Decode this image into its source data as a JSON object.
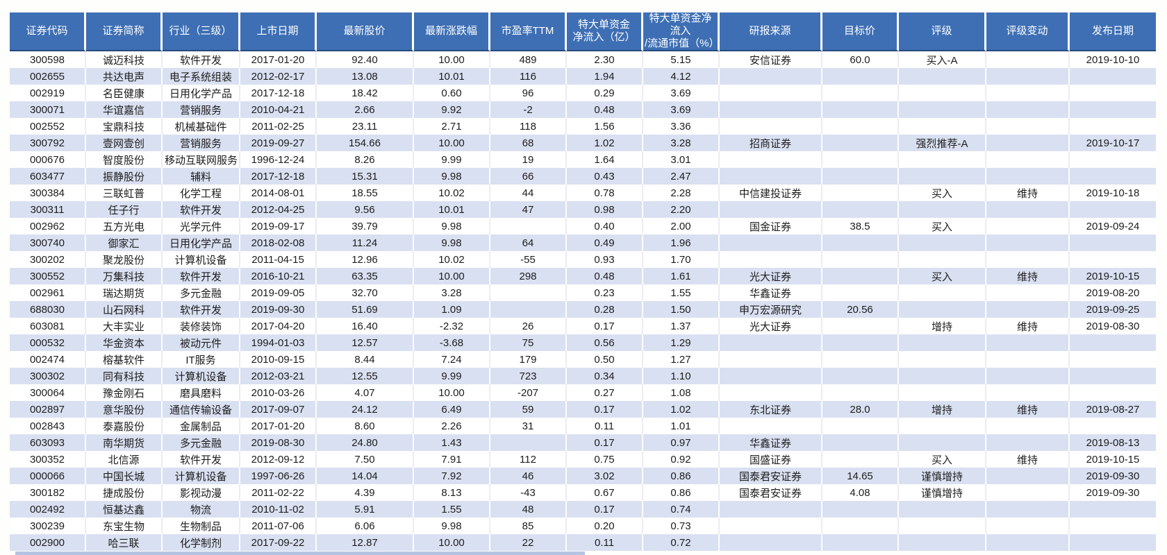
{
  "colors": {
    "header_bg": "#3e6fb4",
    "header_divider": "#26497d",
    "band_bg": "#d9e0f1",
    "partial_bar": "#adbee0"
  },
  "table": {
    "columns": [
      "证券代码",
      "证券简称",
      "行业（三级）",
      "上市日期",
      "最新股价",
      "最新涨跌幅",
      "市盈率TTM",
      "特大单资金\n净流入（亿）",
      "特大单资金净流入\n/流通市值（%）",
      "研报来源",
      "目标价",
      "评级",
      "评级变动",
      "发布日期"
    ],
    "rows": [
      [
        "300598",
        "诚迈科技",
        "软件开发",
        "2017-01-20",
        "92.40",
        "10.00",
        "489",
        "2.30",
        "5.15",
        "安信证券",
        "60.0",
        "买入-A",
        "",
        "2019-10-10"
      ],
      [
        "002655",
        "共达电声",
        "电子系统组装",
        "2012-02-17",
        "13.08",
        "10.01",
        "116",
        "1.94",
        "4.12",
        "",
        "",
        "",
        "",
        ""
      ],
      [
        "002919",
        "名臣健康",
        "日用化学产品",
        "2017-12-18",
        "18.42",
        "0.60",
        "96",
        "0.29",
        "3.69",
        "",
        "",
        "",
        "",
        ""
      ],
      [
        "300071",
        "华谊嘉信",
        "营销服务",
        "2010-04-21",
        "2.66",
        "9.92",
        "-2",
        "0.48",
        "3.69",
        "",
        "",
        "",
        "",
        ""
      ],
      [
        "002552",
        "宝鼎科技",
        "机械基础件",
        "2011-02-25",
        "23.11",
        "2.71",
        "118",
        "1.56",
        "3.36",
        "",
        "",
        "",
        "",
        ""
      ],
      [
        "300792",
        "壹网壹创",
        "营销服务",
        "2019-09-27",
        "154.66",
        "10.00",
        "68",
        "1.02",
        "3.28",
        "招商证券",
        "",
        "强烈推荐-A",
        "",
        "2019-10-17"
      ],
      [
        "000676",
        "智度股份",
        "移动互联网服务",
        "1996-12-24",
        "8.26",
        "9.99",
        "19",
        "1.64",
        "3.01",
        "",
        "",
        "",
        "",
        ""
      ],
      [
        "603477",
        "振静股份",
        "辅料",
        "2017-12-18",
        "15.31",
        "9.98",
        "66",
        "0.43",
        "2.47",
        "",
        "",
        "",
        "",
        ""
      ],
      [
        "300384",
        "三联虹普",
        "化学工程",
        "2014-08-01",
        "18.55",
        "10.02",
        "44",
        "0.78",
        "2.28",
        "中信建投证券",
        "",
        "买入",
        "维持",
        "2019-10-18"
      ],
      [
        "300311",
        "任子行",
        "软件开发",
        "2012-04-25",
        "9.56",
        "10.01",
        "47",
        "0.98",
        "2.20",
        "",
        "",
        "",
        "",
        ""
      ],
      [
        "002962",
        "五方光电",
        "光学元件",
        "2019-09-17",
        "39.79",
        "9.98",
        "",
        "0.40",
        "2.00",
        "国金证券",
        "38.5",
        "买入",
        "",
        "2019-09-24"
      ],
      [
        "300740",
        "御家汇",
        "日用化学产品",
        "2018-02-08",
        "11.24",
        "9.98",
        "64",
        "0.49",
        "1.96",
        "",
        "",
        "",
        "",
        ""
      ],
      [
        "300202",
        "聚龙股份",
        "计算机设备",
        "2011-04-15",
        "12.96",
        "10.02",
        "-55",
        "0.93",
        "1.70",
        "",
        "",
        "",
        "",
        ""
      ],
      [
        "300552",
        "万集科技",
        "软件开发",
        "2016-10-21",
        "63.35",
        "10.00",
        "298",
        "0.48",
        "1.61",
        "光大证券",
        "",
        "买入",
        "维持",
        "2019-10-15"
      ],
      [
        "002961",
        "瑞达期货",
        "多元金融",
        "2019-09-05",
        "32.70",
        "3.28",
        "",
        "0.23",
        "1.55",
        "华鑫证券",
        "",
        "",
        "",
        "2019-08-20"
      ],
      [
        "688030",
        "山石网科",
        "软件开发",
        "2019-09-30",
        "51.69",
        "1.09",
        "",
        "0.28",
        "1.50",
        "申万宏源研究",
        "20.56",
        "",
        "",
        "2019-09-25"
      ],
      [
        "603081",
        "大丰实业",
        "装修装饰",
        "2017-04-20",
        "16.40",
        "-2.32",
        "26",
        "0.17",
        "1.37",
        "光大证券",
        "",
        "增持",
        "维持",
        "2019-08-30"
      ],
      [
        "000532",
        "华金资本",
        "被动元件",
        "1994-01-03",
        "12.57",
        "-3.68",
        "75",
        "0.56",
        "1.29",
        "",
        "",
        "",
        "",
        ""
      ],
      [
        "002474",
        "榕基软件",
        "IT服务",
        "2010-09-15",
        "8.44",
        "7.24",
        "179",
        "0.50",
        "1.27",
        "",
        "",
        "",
        "",
        ""
      ],
      [
        "300302",
        "同有科技",
        "计算机设备",
        "2012-03-21",
        "12.55",
        "9.99",
        "723",
        "0.34",
        "1.10",
        "",
        "",
        "",
        "",
        ""
      ],
      [
        "300064",
        "豫金刚石",
        "磨具磨料",
        "2010-03-26",
        "4.07",
        "10.00",
        "-207",
        "0.27",
        "1.08",
        "",
        "",
        "",
        "",
        ""
      ],
      [
        "002897",
        "意华股份",
        "通信传输设备",
        "2017-09-07",
        "24.12",
        "6.49",
        "59",
        "0.17",
        "1.02",
        "东北证券",
        "28.0",
        "增持",
        "维持",
        "2019-08-27"
      ],
      [
        "002843",
        "泰嘉股份",
        "金属制品",
        "2017-01-20",
        "8.60",
        "2.26",
        "31",
        "0.11",
        "1.01",
        "",
        "",
        "",
        "",
        ""
      ],
      [
        "603093",
        "南华期货",
        "多元金融",
        "2019-08-30",
        "24.80",
        "1.43",
        "",
        "0.17",
        "0.97",
        "华鑫证券",
        "",
        "",
        "",
        "2019-08-13"
      ],
      [
        "300352",
        "北信源",
        "软件开发",
        "2012-09-12",
        "7.50",
        "7.91",
        "112",
        "0.75",
        "0.92",
        "国盛证券",
        "",
        "买入",
        "维持",
        "2019-10-15"
      ],
      [
        "000066",
        "中国长城",
        "计算机设备",
        "1997-06-26",
        "14.04",
        "7.92",
        "46",
        "3.02",
        "0.86",
        "国泰君安证券",
        "14.65",
        "谨慎增持",
        "",
        "2019-09-30"
      ],
      [
        "300182",
        "捷成股份",
        "影视动漫",
        "2011-02-22",
        "4.39",
        "8.13",
        "-43",
        "0.67",
        "0.86",
        "国泰君安证券",
        "4.08",
        "谨慎增持",
        "",
        "2019-09-30"
      ],
      [
        "002492",
        "恒基达鑫",
        "物流",
        "2010-11-02",
        "5.91",
        "1.55",
        "48",
        "0.17",
        "0.74",
        "",
        "",
        "",
        "",
        ""
      ],
      [
        "300239",
        "东宝生物",
        "生物制品",
        "2011-07-06",
        "6.06",
        "9.98",
        "85",
        "0.20",
        "0.73",
        "",
        "",
        "",
        "",
        ""
      ],
      [
        "002900",
        "哈三联",
        "化学制剂",
        "2017-09-22",
        "12.87",
        "10.00",
        "22",
        "0.11",
        "0.72",
        "",
        "",
        "",
        "",
        ""
      ]
    ]
  }
}
